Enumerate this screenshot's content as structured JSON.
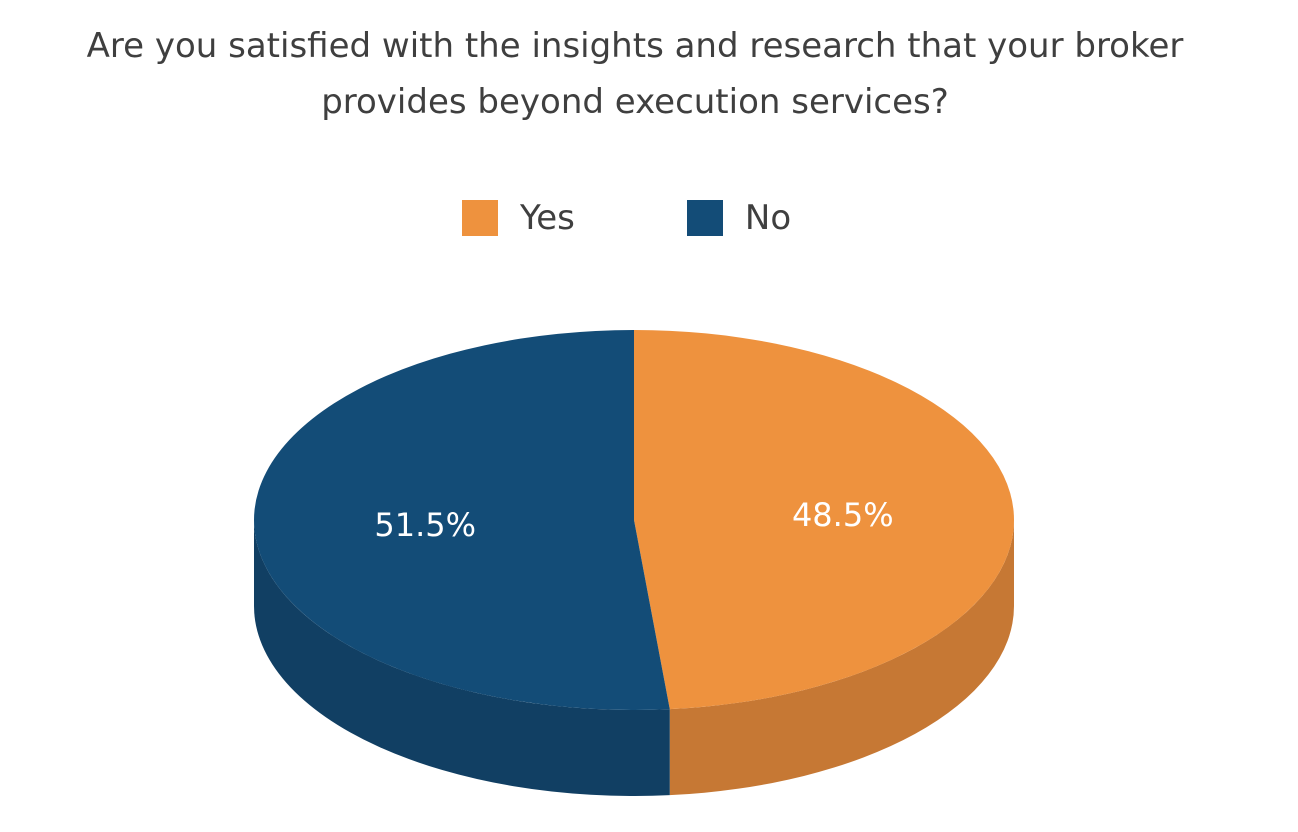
{
  "chart_data": {
    "type": "pie",
    "title_lines": [
      "Are you satisfied with the insights and research that your broker",
      "provides beyond execution services?"
    ],
    "legend_position": "top",
    "slices": [
      {
        "name": "Yes",
        "value": 48.5,
        "label": "48.5%",
        "color": "#ee923e",
        "side_color": "#c67834"
      },
      {
        "name": "No",
        "value": 51.5,
        "label": "51.5%",
        "color": "#134c77",
        "side_color": "#113f63"
      }
    ]
  }
}
